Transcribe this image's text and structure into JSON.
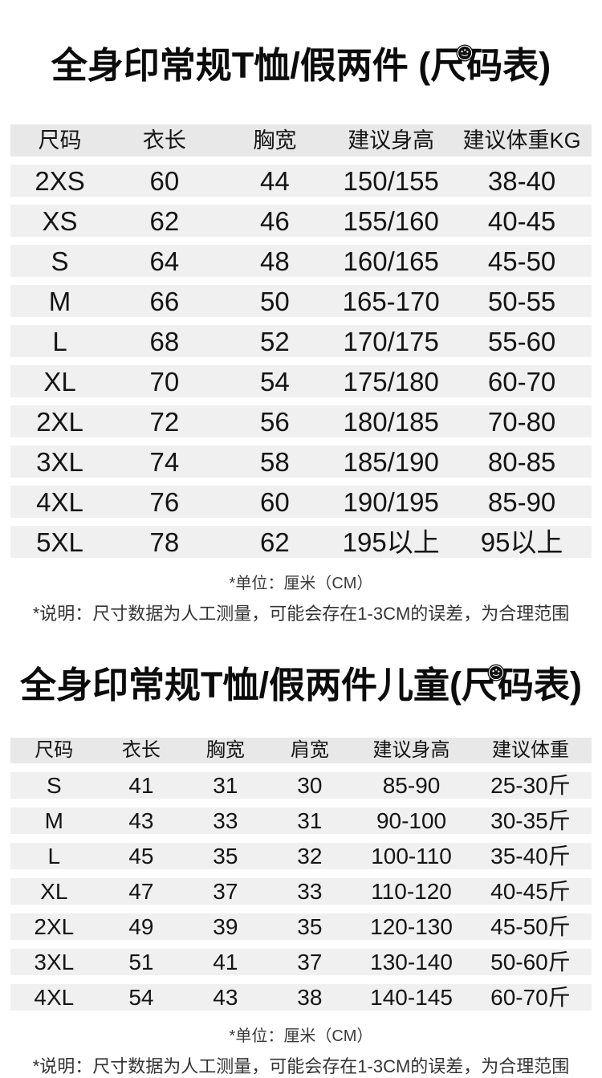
{
  "colors": {
    "background": "#ffffff",
    "title_text": "#0c0c0c",
    "body_text": "#141414",
    "note_text": "#3a3a3a",
    "header_band": "#e8e8e8",
    "row_band": "#f0f0f0"
  },
  "icons": {
    "sticker": "round-sticker-icon"
  },
  "adult_section": {
    "title": {
      "part1": "全身印常规T恤/假两件 (",
      "char": "尺",
      "part2": "码表)"
    },
    "columns": [
      "尺码",
      "衣长",
      "胸宽",
      "建议身高",
      "建议体重KG"
    ],
    "rows": [
      [
        "2XS",
        "60",
        "44",
        "150/155",
        "38-40"
      ],
      [
        "XS",
        "62",
        "46",
        "155/160",
        "40-45"
      ],
      [
        "S",
        "64",
        "48",
        "160/165",
        "45-50"
      ],
      [
        "M",
        "66",
        "50",
        "165-170",
        "50-55"
      ],
      [
        "L",
        "68",
        "52",
        "170/175",
        "55-60"
      ],
      [
        "XL",
        "70",
        "54",
        "175/180",
        "60-70"
      ],
      [
        "2XL",
        "72",
        "56",
        "180/185",
        "70-80"
      ],
      [
        "3XL",
        "74",
        "58",
        "185/190",
        "80-85"
      ],
      [
        "4XL",
        "76",
        "60",
        "190/195",
        "85-90"
      ],
      [
        "5XL",
        "78",
        "62",
        "195以上",
        "95以上"
      ]
    ],
    "unit_note": "*单位：厘米（CM）",
    "disclaimer_note": "*说明：尺寸数据为人工测量，可能会存在1-3CM的误差，为合理范围"
  },
  "kids_section": {
    "title": {
      "part1": "全身印常规T恤/假两件儿童(",
      "char": "尺",
      "part2": "码表)"
    },
    "columns": [
      "尺码",
      "衣长",
      "胸宽",
      "肩宽",
      "建议身高",
      "建议体重"
    ],
    "rows": [
      [
        "S",
        "41",
        "31",
        "30",
        "85-90",
        "25-30斤"
      ],
      [
        "M",
        "43",
        "33",
        "31",
        "90-100",
        "30-35斤"
      ],
      [
        "L",
        "45",
        "35",
        "32",
        "100-110",
        "35-40斤"
      ],
      [
        "XL",
        "47",
        "37",
        "33",
        "110-120",
        "40-45斤"
      ],
      [
        "2XL",
        "49",
        "39",
        "35",
        "120-130",
        "45-50斤"
      ],
      [
        "3XL",
        "51",
        "41",
        "37",
        "130-140",
        "50-60斤"
      ],
      [
        "4XL",
        "54",
        "43",
        "38",
        "140-145",
        "60-70斤"
      ]
    ],
    "unit_note": "*单位：厘米（CM）",
    "disclaimer_note": "*说明：尺寸数据为人工测量，可能会存在1-3CM的误差，为合理范围"
  }
}
